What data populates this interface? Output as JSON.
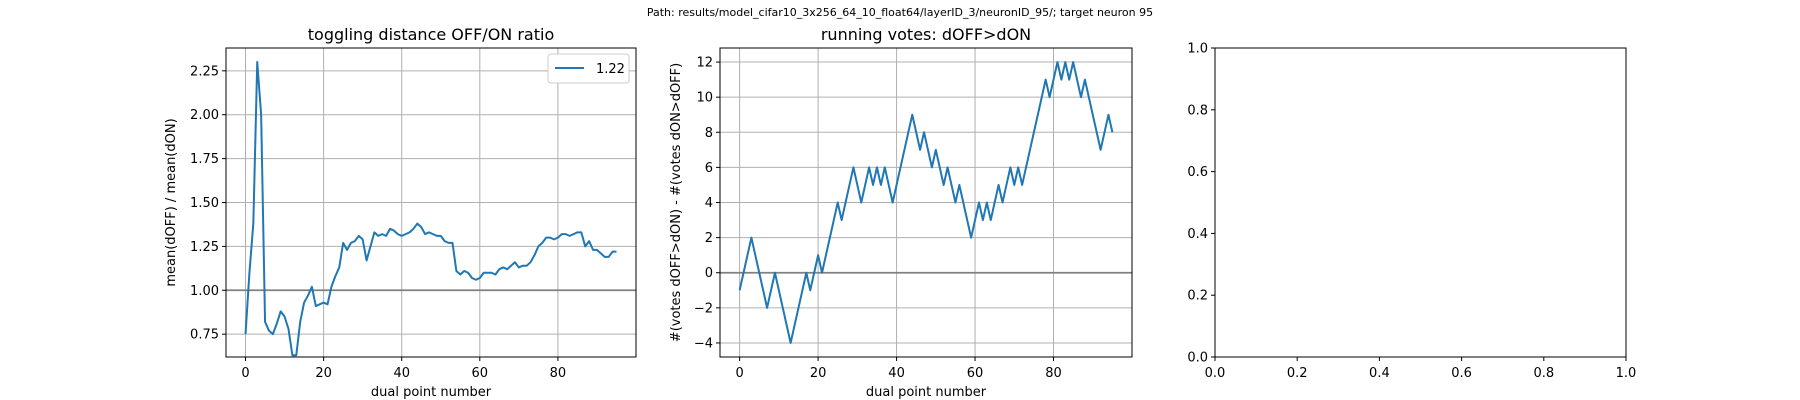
{
  "suptitle": "Path: results/model_cifar10_3x256_64_10_float64/layerID_3/neuronID_95/; target neuron 95",
  "colors": {
    "line": "#1f77b4",
    "refline": "#808080",
    "grid": "#b0b0b0"
  },
  "chart_data": [
    {
      "type": "line",
      "title": "toggling distance OFF/ON ratio",
      "xlabel": "dual point number",
      "ylabel": "mean(dOFF) / mean(dON)",
      "xlim": [
        -5,
        100
      ],
      "ylim": [
        0.62,
        2.38
      ],
      "xticks": [
        0,
        20,
        40,
        60,
        80
      ],
      "yticks": [
        0.75,
        1.0,
        1.25,
        1.5,
        1.75,
        2.0,
        2.25
      ],
      "ytick_labels": [
        "0.75",
        "1.00",
        "1.25",
        "1.50",
        "1.75",
        "2.00",
        "2.25"
      ],
      "grid": true,
      "hline": 1.0,
      "legend": {
        "position": "upper right",
        "entries": [
          "1.22"
        ]
      },
      "series": [
        {
          "name": "1.22",
          "x": [
            0,
            1,
            2,
            3,
            4,
            5,
            6,
            7,
            8,
            9,
            10,
            11,
            12,
            13,
            14,
            15,
            16,
            17,
            18,
            19,
            20,
            21,
            22,
            23,
            24,
            25,
            26,
            27,
            28,
            29,
            30,
            31,
            32,
            33,
            34,
            35,
            36,
            37,
            38,
            39,
            40,
            41,
            42,
            43,
            44,
            45,
            46,
            47,
            48,
            49,
            50,
            51,
            52,
            53,
            54,
            55,
            56,
            57,
            58,
            59,
            60,
            61,
            62,
            63,
            64,
            65,
            66,
            67,
            68,
            69,
            70,
            71,
            72,
            73,
            74,
            75,
            76,
            77,
            78,
            79,
            80,
            81,
            82,
            83,
            84,
            85,
            86,
            87,
            88,
            89,
            90,
            91,
            92,
            93,
            94,
            95
          ],
          "y": [
            0.75,
            1.1,
            1.38,
            2.3,
            2.0,
            0.82,
            0.77,
            0.75,
            0.81,
            0.88,
            0.85,
            0.78,
            0.63,
            0.63,
            0.82,
            0.93,
            0.97,
            1.02,
            0.91,
            0.92,
            0.93,
            0.92,
            1.02,
            1.08,
            1.13,
            1.27,
            1.23,
            1.27,
            1.28,
            1.31,
            1.29,
            1.17,
            1.25,
            1.33,
            1.31,
            1.32,
            1.31,
            1.35,
            1.34,
            1.32,
            1.31,
            1.32,
            1.33,
            1.35,
            1.38,
            1.36,
            1.32,
            1.33,
            1.32,
            1.31,
            1.31,
            1.28,
            1.27,
            1.27,
            1.11,
            1.09,
            1.11,
            1.1,
            1.07,
            1.06,
            1.07,
            1.1,
            1.1,
            1.1,
            1.09,
            1.12,
            1.13,
            1.12,
            1.14,
            1.16,
            1.13,
            1.14,
            1.14,
            1.16,
            1.2,
            1.25,
            1.27,
            1.3,
            1.3,
            1.29,
            1.3,
            1.32,
            1.32,
            1.31,
            1.32,
            1.33,
            1.33,
            1.25,
            1.28,
            1.23,
            1.23,
            1.21,
            1.19,
            1.19,
            1.22,
            1.22
          ]
        }
      ]
    },
    {
      "type": "line",
      "title": "running votes: dOFF>dON",
      "xlabel": "dual point number",
      "ylabel": "#(votes dOFF>dON) - #(votes dON>dOFF)",
      "xlim": [
        -5,
        100
      ],
      "ylim": [
        -4.8,
        12.8
      ],
      "xticks": [
        0,
        20,
        40,
        60,
        80
      ],
      "yticks": [
        -4,
        -2,
        0,
        2,
        4,
        6,
        8,
        10,
        12
      ],
      "ytick_labels": [
        "−4",
        "−2",
        "0",
        "2",
        "4",
        "6",
        "8",
        "10",
        "12"
      ],
      "grid": true,
      "hline": 0,
      "series": [
        {
          "x": [
            0,
            1,
            2,
            3,
            4,
            5,
            6,
            7,
            8,
            9,
            10,
            11,
            12,
            13,
            14,
            15,
            16,
            17,
            18,
            19,
            20,
            21,
            22,
            23,
            24,
            25,
            26,
            27,
            28,
            29,
            30,
            31,
            32,
            33,
            34,
            35,
            36,
            37,
            38,
            39,
            40,
            41,
            42,
            43,
            44,
            45,
            46,
            47,
            48,
            49,
            50,
            51,
            52,
            53,
            54,
            55,
            56,
            57,
            58,
            59,
            60,
            61,
            62,
            63,
            64,
            65,
            66,
            67,
            68,
            69,
            70,
            71,
            72,
            73,
            74,
            75,
            76,
            77,
            78,
            79,
            80,
            81,
            82,
            83,
            84,
            85,
            86,
            87,
            88,
            89,
            90,
            91,
            92,
            93,
            94,
            95
          ],
          "y": [
            -1,
            0,
            1,
            2,
            1,
            0,
            -1,
            -2,
            -1,
            0,
            -1,
            -2,
            -3,
            -4,
            -3,
            -2,
            -1,
            0,
            -1,
            0,
            1,
            0,
            1,
            2,
            3,
            4,
            3,
            4,
            5,
            6,
            5,
            4,
            5,
            6,
            5,
            6,
            5,
            6,
            5,
            4,
            5,
            6,
            7,
            8,
            9,
            8,
            7,
            8,
            7,
            6,
            7,
            6,
            5,
            6,
            5,
            4,
            5,
            4,
            3,
            2,
            3,
            4,
            3,
            4,
            3,
            4,
            5,
            4,
            5,
            6,
            5,
            6,
            5,
            6,
            7,
            8,
            9,
            10,
            11,
            10,
            11,
            12,
            11,
            12,
            11,
            12,
            11,
            10,
            11,
            10,
            9,
            8,
            7,
            8,
            9,
            8
          ]
        }
      ]
    },
    {
      "type": "line",
      "title": "",
      "xlim": [
        0,
        1
      ],
      "ylim": [
        0,
        1
      ],
      "xticks": [
        0,
        0.2,
        0.4,
        0.6,
        0.8,
        1.0
      ],
      "xtick_labels": [
        "0.0",
        "0.2",
        "0.4",
        "0.6",
        "0.8",
        "1.0"
      ],
      "yticks": [
        0,
        0.2,
        0.4,
        0.6,
        0.8,
        1.0
      ],
      "ytick_labels": [
        "0.0",
        "0.2",
        "0.4",
        "0.6",
        "0.8",
        "1.0"
      ],
      "grid": false,
      "series": []
    }
  ]
}
